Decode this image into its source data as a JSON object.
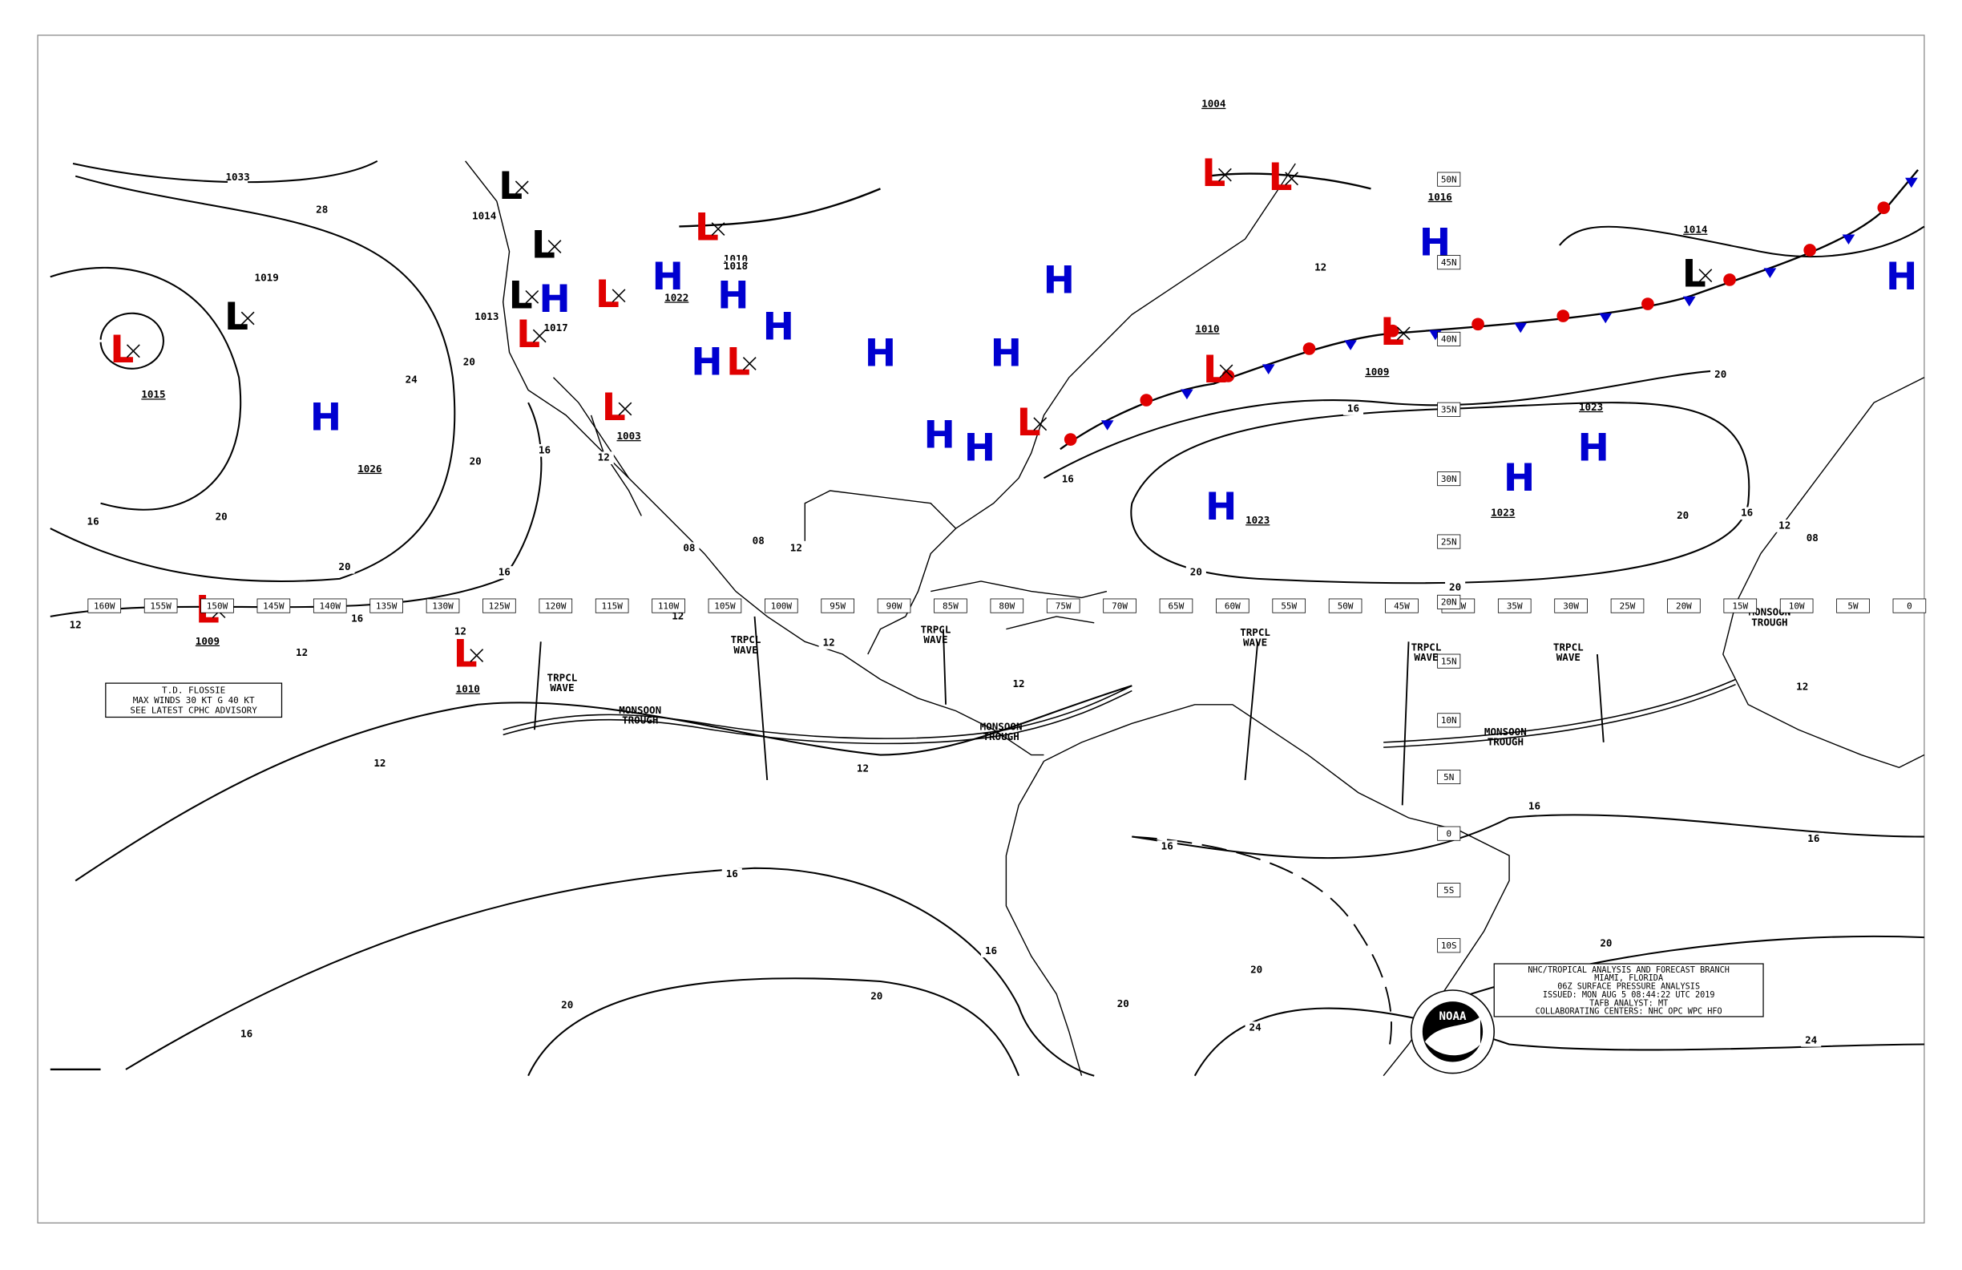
{
  "map": {
    "longitude_labels": [
      "160W",
      "155W",
      "150W",
      "145W",
      "140W",
      "135W",
      "130W",
      "125W",
      "120W",
      "115W",
      "110W",
      "105W",
      "100W",
      "95W",
      "90W",
      "85W",
      "80W",
      "75W",
      "70W",
      "65W",
      "60W",
      "55W",
      "50W",
      "45W",
      "40W",
      "35W",
      "30W",
      "25W",
      "20W",
      "15W",
      "10W",
      "5W",
      "0"
    ],
    "latitude_labels": [
      "50N",
      "45N",
      "40N",
      "35N",
      "30N",
      "25N",
      "20N",
      "15N",
      "10N",
      "5N",
      "0",
      "5S",
      "10S"
    ],
    "pressure_centers": [
      {
        "symbol": "L",
        "color": "#e00000",
        "pressure": "1015"
      },
      {
        "symbol": "L",
        "color": "#000000"
      },
      {
        "symbol": "H",
        "color": "#0000d0",
        "pressure": "1026"
      },
      {
        "symbol": "L",
        "color": "#e00000",
        "pressure": "1009"
      },
      {
        "symbol": "L",
        "color": "#e00000",
        "pressure": "1010"
      },
      {
        "symbol": "H",
        "color": "#0000d0",
        "pressure": "1023"
      },
      {
        "symbol": "H",
        "color": "#0000d0",
        "pressure": "1023"
      },
      {
        "symbol": "H",
        "color": "#0000d0",
        "pressure": "1023"
      },
      {
        "symbol": "H",
        "color": "#0000d0",
        "pressure": "1016"
      },
      {
        "symbol": "L",
        "color": "#e00000",
        "pressure": "1009"
      },
      {
        "symbol": "L",
        "color": "#000000",
        "pressure": "1014"
      },
      {
        "symbol": "H",
        "color": "#0000d0"
      },
      {
        "symbol": "L",
        "color": "#e00000",
        "pressure": "1004"
      },
      {
        "symbol": "L",
        "color": "#e00000"
      },
      {
        "symbol": "L",
        "color": "#e00000",
        "pressure": "1010"
      },
      {
        "symbol": "H",
        "color": "#0000d0"
      },
      {
        "symbol": "H",
        "color": "#0000d0"
      },
      {
        "symbol": "H",
        "color": "#0000d0"
      },
      {
        "symbol": "H",
        "color": "#0000d0"
      },
      {
        "symbol": "L",
        "color": "#e00000"
      },
      {
        "symbol": "H",
        "color": "#0000d0"
      },
      {
        "symbol": "L",
        "color": "#000000"
      },
      {
        "symbol": "L",
        "color": "#000000"
      },
      {
        "symbol": "L",
        "color": "#000000"
      },
      {
        "symbol": "L",
        "color": "#e00000"
      },
      {
        "symbol": "L",
        "color": "#e00000"
      },
      {
        "symbol": "H",
        "color": "#0000d0"
      },
      {
        "symbol": "H",
        "color": "#0000d0",
        "pressure": "1022"
      },
      {
        "symbol": "H",
        "color": "#0000d0"
      },
      {
        "symbol": "H",
        "color": "#0000d0"
      },
      {
        "symbol": "H",
        "color": "#0000d0"
      },
      {
        "symbol": "L",
        "color": "#e00000"
      },
      {
        "symbol": "L",
        "color": "#e00000",
        "pressure": "1010"
      },
      {
        "symbol": "L",
        "color": "#e00000",
        "pressure": "1003"
      }
    ],
    "isobar_labels": [
      "1033",
      "28",
      "1019",
      "24",
      "20",
      "20",
      "16",
      "20",
      "20",
      "16",
      "16",
      "12",
      "12",
      "12",
      "12",
      "16",
      "16",
      "20",
      "20",
      "16",
      "20",
      "24",
      "20",
      "20",
      "24",
      "16",
      "16",
      "16",
      "12",
      "12",
      "12",
      "12",
      "12",
      "08",
      "08",
      "16",
      "16",
      "20",
      "20",
      "20",
      "20",
      "16",
      "12",
      "08",
      "12",
      "12",
      "16",
      "12",
      "1013",
      "1014",
      "1018",
      "1017"
    ],
    "feature_labels": [
      {
        "lines": [
          "TRPCL",
          "WAVE"
        ]
      },
      {
        "lines": [
          "TRPCL",
          "WAVE"
        ]
      },
      {
        "lines": [
          "TRPCL",
          "WAVE"
        ]
      },
      {
        "lines": [
          "TRPCL",
          "WAVE"
        ]
      },
      {
        "lines": [
          "TRPCL",
          "WAVE"
        ]
      },
      {
        "lines": [
          "TRPCL",
          "WAVE"
        ]
      },
      {
        "lines": [
          "MONSOON",
          "TROUGH"
        ]
      },
      {
        "lines": [
          "MONSOON",
          "TROUGH"
        ]
      },
      {
        "lines": [
          "MONSOON",
          "TROUGH"
        ]
      },
      {
        "lines": [
          "MONSOON",
          "TROUGH"
        ]
      }
    ],
    "advisory_box": {
      "lines": [
        "T.D. FLOSSIE",
        "MAX WINDS 30 KT G 40 KT",
        "SEE LATEST CPHC ADVISORY"
      ]
    },
    "title_box": {
      "lines": [
        "NHC/TROPICAL ANALYSIS AND FORECAST BRANCH",
        "MIAMI, FLORIDA",
        "06Z SURFACE PRESSURE ANALYSIS",
        "ISSUED: MON AUG 5 08:44:22 UTC 2019",
        "TAFB ANALYST: MT",
        "COLLABORATING CENTERS: NHC OPC WPC HFO"
      ]
    },
    "logo": "NOAA"
  }
}
